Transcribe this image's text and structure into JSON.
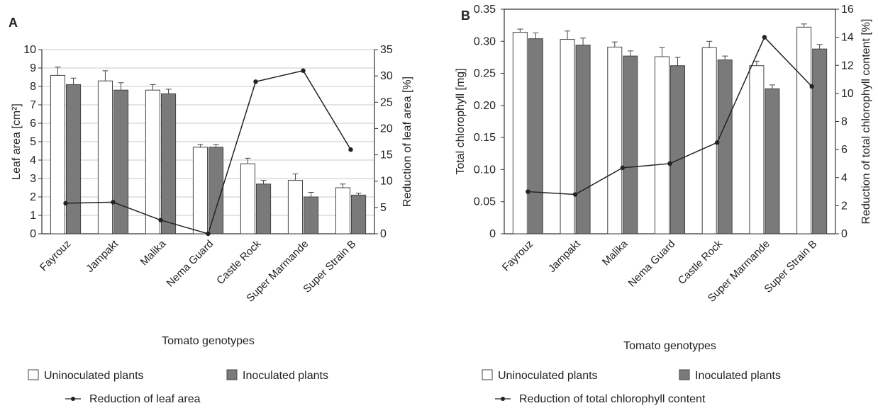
{
  "chart_data": [
    {
      "type": "bar",
      "panel_label": "A",
      "categories": [
        "Fayrouz",
        "Jampakt",
        "Malika",
        "Nema Guard",
        "Castle Rock",
        "Super Marmande",
        "Super Strain B"
      ],
      "series": [
        {
          "name": "Uninoculated plants",
          "kind": "bar",
          "color": "#ffffff",
          "values": [
            8.6,
            8.3,
            7.8,
            4.7,
            3.8,
            2.9,
            2.5
          ],
          "errors": [
            0.45,
            0.55,
            0.3,
            0.15,
            0.3,
            0.35,
            0.2
          ]
        },
        {
          "name": "Inoculated plants",
          "kind": "bar",
          "color": "#7a7a7a",
          "values": [
            8.1,
            7.8,
            7.6,
            4.7,
            2.7,
            2.0,
            2.1
          ],
          "errors": [
            0.35,
            0.4,
            0.25,
            0.15,
            0.2,
            0.25,
            0.1
          ]
        },
        {
          "name": "Reduction of leaf area",
          "kind": "line",
          "axis": "right",
          "color": "#222222",
          "values": [
            5.8,
            6.0,
            2.6,
            0,
            28.9,
            31.0,
            16.0
          ]
        }
      ],
      "xlabel": "Tomato genotypes",
      "ylabel": "Leaf area [cm²]",
      "ylabel_right": "Reduction of leaf area [%]",
      "ylim": [
        0,
        10
      ],
      "ylim_right": [
        0,
        35
      ],
      "yticks": [
        "0",
        "1",
        "2",
        "3",
        "4",
        "5",
        "6",
        "7",
        "8",
        "9",
        "10"
      ],
      "yticks_right": [
        "0",
        "5",
        "10",
        "15",
        "20",
        "25",
        "30",
        "35"
      ],
      "grid": true,
      "legend": {
        "items": [
          "Uninoculated plants",
          "Inoculated plants",
          "Reduction of leaf area"
        ],
        "placement": "bottom"
      }
    },
    {
      "type": "bar",
      "panel_label": "B",
      "categories": [
        "Fayrouz",
        "Jampakt",
        "Malika",
        "Nema Guard",
        "Castle Rock",
        "Super Marmande",
        "Super Strain B"
      ],
      "series": [
        {
          "name": "Uninoculated plants",
          "kind": "bar",
          "color": "#ffffff",
          "values": [
            0.314,
            0.303,
            0.291,
            0.276,
            0.29,
            0.262,
            0.322
          ],
          "errors": [
            0.005,
            0.013,
            0.008,
            0.014,
            0.01,
            0.007,
            0.005
          ]
        },
        {
          "name": "Inoculated plants",
          "kind": "bar",
          "color": "#7a7a7a",
          "values": [
            0.304,
            0.294,
            0.277,
            0.262,
            0.271,
            0.226,
            0.288
          ],
          "errors": [
            0.009,
            0.011,
            0.008,
            0.013,
            0.006,
            0.006,
            0.007
          ]
        },
        {
          "name": "Reduction of total chlorophyll content",
          "kind": "line",
          "axis": "right",
          "color": "#222222",
          "values": [
            3.0,
            2.8,
            4.7,
            5.0,
            6.5,
            14.0,
            10.5
          ]
        }
      ],
      "xlabel": "Tomato genotypes",
      "ylabel": "Total chlorophyll [mg]",
      "ylabel_right": "Reduction of total chlorophyll content [%]",
      "ylim": [
        0,
        0.35
      ],
      "ylim_right": [
        0,
        16
      ],
      "yticks": [
        "0",
        "0.05",
        "0.10",
        "0.15",
        "0.20",
        "0.25",
        "0.30",
        "0.35"
      ],
      "yticks_right": [
        "0",
        "2",
        "4",
        "6",
        "8",
        "10",
        "12",
        "14",
        "16"
      ],
      "grid": false,
      "legend": {
        "items": [
          "Uninoculated plants",
          "Inoculated plants",
          "Reduction of total chlorophyll content"
        ],
        "placement": "bottom"
      }
    }
  ]
}
